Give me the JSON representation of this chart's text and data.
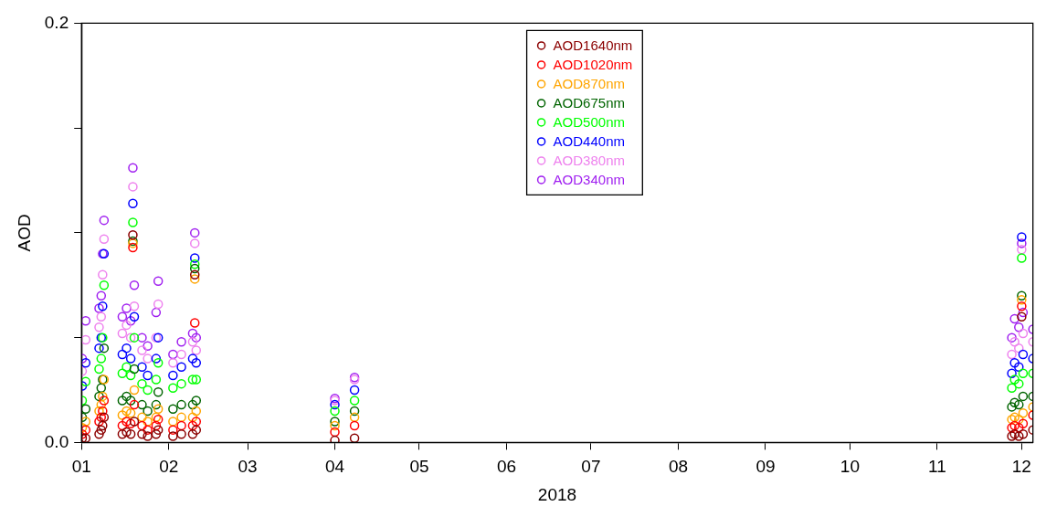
{
  "chart_data": {
    "type": "scatter",
    "xlabel": "2018",
    "ylabel": "AOD",
    "x": [
      "2018-01-01T06:00",
      "2018-01-02T12:00",
      "2018-01-07T06:00",
      "2018-01-08T00:00",
      "2018-01-08T12:00",
      "2018-01-09T00:00",
      "2018-01-15T12:00",
      "2018-01-17T00:00",
      "2018-01-18T12:00",
      "2018-01-19T06:00",
      "2018-01-19T18:00",
      "2018-01-22T12:00",
      "2018-01-24T12:00",
      "2018-01-27T12:00",
      "2018-01-28T06:00",
      "2018-02-02T12:00",
      "2018-02-05T12:00",
      "2018-02-09T12:00",
      "2018-02-10T06:00",
      "2018-02-10T18:00",
      "2018-04-01T00:00",
      "2018-04-08T00:00",
      "2018-11-27T12:00",
      "2018-11-28T12:00",
      "2018-11-30T00:00",
      "2018-12-01T00:00",
      "2018-12-01T12:00",
      "2018-12-05T00:00"
    ],
    "series": [
      {
        "name": "AOD1640nm",
        "color": "#8b0000",
        "values": [
          0.002,
          0.002,
          0.004,
          0.006,
          0.008,
          0.012,
          0.004,
          0.005,
          0.004,
          0.099,
          0.01,
          0.004,
          0.003,
          0.004,
          0.006,
          0.003,
          0.004,
          0.004,
          0.08,
          0.006,
          0.001,
          0.002,
          0.003,
          0.004,
          0.003,
          0.06,
          0.004,
          0.006
        ]
      },
      {
        "name": "AOD1020nm",
        "color": "#ff0000",
        "values": [
          0.004,
          0.006,
          0.01,
          0.012,
          0.015,
          0.02,
          0.008,
          0.01,
          0.009,
          0.093,
          0.018,
          0.008,
          0.006,
          0.008,
          0.011,
          0.006,
          0.008,
          0.008,
          0.057,
          0.01,
          0.005,
          0.008,
          0.007,
          0.008,
          0.007,
          0.065,
          0.009,
          0.013
        ]
      },
      {
        "name": "AOD870nm",
        "color": "#ffa500",
        "values": [
          0.007,
          0.01,
          0.015,
          0.018,
          0.022,
          0.03,
          0.013,
          0.015,
          0.014,
          0.095,
          0.025,
          0.012,
          0.01,
          0.012,
          0.016,
          0.01,
          0.012,
          0.012,
          0.078,
          0.015,
          0.008,
          0.012,
          0.011,
          0.012,
          0.011,
          0.068,
          0.014,
          0.017
        ]
      },
      {
        "name": "AOD675nm",
        "color": "#006400",
        "values": [
          0.012,
          0.016,
          0.022,
          0.026,
          0.03,
          0.045,
          0.02,
          0.022,
          0.02,
          0.096,
          0.035,
          0.018,
          0.015,
          0.018,
          0.024,
          0.016,
          0.018,
          0.018,
          0.083,
          0.02,
          0.01,
          0.015,
          0.017,
          0.019,
          0.018,
          0.07,
          0.022,
          0.022
        ]
      },
      {
        "name": "AOD500nm",
        "color": "#00ff00",
        "values": [
          0.02,
          0.029,
          0.035,
          0.04,
          0.05,
          0.075,
          0.033,
          0.036,
          0.032,
          0.105,
          0.05,
          0.028,
          0.025,
          0.03,
          0.038,
          0.026,
          0.028,
          0.03,
          0.085,
          0.03,
          0.015,
          0.02,
          0.026,
          0.03,
          0.028,
          0.088,
          0.033,
          0.033
        ]
      },
      {
        "name": "AOD440nm",
        "color": "#0000ff",
        "values": [
          0.027,
          0.038,
          0.045,
          0.05,
          0.065,
          0.09,
          0.042,
          0.045,
          0.04,
          0.114,
          0.06,
          0.036,
          0.032,
          0.04,
          0.05,
          0.032,
          0.036,
          0.04,
          0.088,
          0.038,
          0.018,
          0.025,
          0.033,
          0.038,
          0.036,
          0.098,
          0.042,
          0.04
        ]
      },
      {
        "name": "AOD380nm",
        "color": "#ee82ee",
        "values": [
          0.034,
          0.049,
          0.055,
          0.06,
          0.08,
          0.097,
          0.052,
          0.056,
          0.05,
          0.122,
          0.065,
          0.044,
          0.04,
          0.05,
          0.066,
          0.038,
          0.042,
          0.048,
          0.095,
          0.044,
          0.02,
          0.03,
          0.042,
          0.048,
          0.045,
          0.092,
          0.052,
          0.048
        ]
      },
      {
        "name": "AOD340nm",
        "color": "#a020f0",
        "values": [
          0.04,
          0.058,
          0.064,
          0.07,
          0.09,
          0.106,
          0.06,
          0.064,
          0.058,
          0.131,
          0.075,
          0.05,
          0.046,
          0.062,
          0.077,
          0.042,
          0.048,
          0.052,
          0.1,
          0.05,
          0.021,
          0.031,
          0.05,
          0.059,
          0.055,
          0.095,
          0.062,
          0.054
        ]
      }
    ],
    "xlim": [
      "2018-01-01",
      "2018-12-05"
    ],
    "xticks": [
      {
        "value": "2018-01-01",
        "label": "01"
      },
      {
        "value": "2018-02-01",
        "label": "02"
      },
      {
        "value": "2018-03-01",
        "label": "03"
      },
      {
        "value": "2018-04-01",
        "label": "04"
      },
      {
        "value": "2018-05-01",
        "label": "05"
      },
      {
        "value": "2018-06-01",
        "label": "06"
      },
      {
        "value": "2018-07-01",
        "label": "07"
      },
      {
        "value": "2018-08-01",
        "label": "08"
      },
      {
        "value": "2018-09-01",
        "label": "09"
      },
      {
        "value": "2018-10-01",
        "label": "10"
      },
      {
        "value": "2018-11-01",
        "label": "11"
      },
      {
        "value": "2018-12-01",
        "label": "12"
      }
    ],
    "ylim": [
      0,
      0.2
    ],
    "yticks": [
      {
        "value": 0,
        "label": "0.0"
      },
      {
        "value": 0.05,
        "label": null
      },
      {
        "value": 0.1,
        "label": null
      },
      {
        "value": 0.15,
        "label": null
      },
      {
        "value": 0.2,
        "label": "0.2"
      }
    ],
    "grid": false,
    "legend": "top",
    "marker": "circle"
  }
}
